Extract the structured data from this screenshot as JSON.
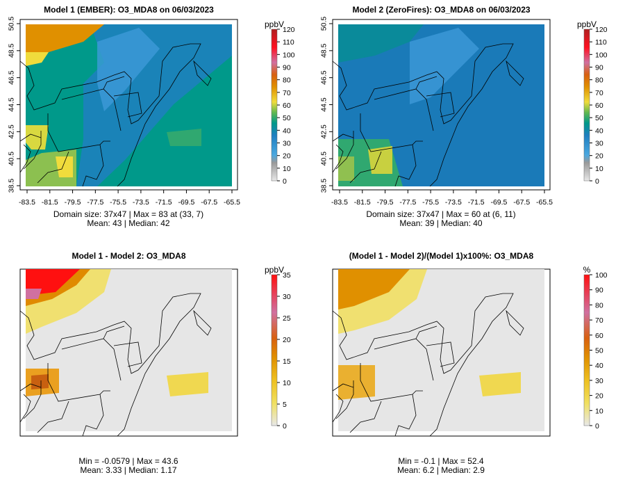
{
  "panels": [
    {
      "title": "Model 1 (EMBER): O3_MDA8 on 06/03/2023",
      "stats_line1": "Domain size: 37x47 | Max = 83 at (33, 7)",
      "stats_line2": "Mean: 43 |  Median: 42",
      "unit": "ppbV",
      "colorbar_ticks": [
        "0",
        "10",
        "20",
        "30",
        "40",
        "50",
        "60",
        "70",
        "80",
        "90",
        "100",
        "110",
        "120"
      ]
    },
    {
      "title": "Model 2 (ZeroFires): O3_MDA8 on 06/03/2023",
      "stats_line1": "Domain size: 37x47 | Max = 60 at (6, 11)",
      "stats_line2": "Mean: 39 |  Median: 40",
      "unit": "ppbV",
      "colorbar_ticks": [
        "0",
        "10",
        "20",
        "30",
        "40",
        "50",
        "60",
        "70",
        "80",
        "90",
        "100",
        "110",
        "120"
      ]
    },
    {
      "title": "Model 1 - Model 2: O3_MDA8",
      "stats_line1": "Min = -0.0579 | Max = 43.6",
      "stats_line2": "Mean: 3.33 |  Median: 1.17",
      "unit": "ppbV",
      "colorbar_ticks": [
        "0",
        "5",
        "10",
        "15",
        "20",
        "25",
        "30",
        "35"
      ]
    },
    {
      "title": "(Model 1 - Model 2)/(Model 1)x100%: O3_MDA8",
      "stats_line1": "Min = -0.1 | Max = 52.4",
      "stats_line2": "Mean: 6.2 |  Median: 2.9",
      "unit": "%",
      "colorbar_ticks": [
        "0",
        "10",
        "20",
        "30",
        "40",
        "50",
        "60",
        "70",
        "80",
        "90",
        "100"
      ]
    }
  ],
  "chart_data": [
    {
      "type": "heatmap",
      "title": "Model 1 (EMBER): O3_MDA8 on 06/03/2023",
      "xlim": [
        -83.5,
        -65.5
      ],
      "ylim": [
        38.5,
        50.5
      ],
      "x_ticks": [
        "-83.5",
        "-81.5",
        "-79.5",
        "-77.5",
        "-75.5",
        "-73.5",
        "-71.5",
        "-69.5",
        "-67.5",
        "-65.5"
      ],
      "y_ticks": [
        "38.5",
        "40.5",
        "42.5",
        "44.5",
        "46.5",
        "48.5",
        "50.5"
      ],
      "zlim": [
        0,
        120
      ],
      "max": 83,
      "mean": 43,
      "median": 42
    },
    {
      "type": "heatmap",
      "title": "Model 2 (ZeroFires): O3_MDA8 on 06/03/2023",
      "xlim": [
        -83.5,
        -65.5
      ],
      "ylim": [
        38.5,
        50.5
      ],
      "x_ticks": [
        "-83.5",
        "-81.5",
        "-79.5",
        "-77.5",
        "-75.5",
        "-73.5",
        "-71.5",
        "-69.5",
        "-67.5",
        "-65.5"
      ],
      "y_ticks": [
        "38.5",
        "40.5",
        "42.5",
        "44.5",
        "46.5",
        "48.5",
        "50.5"
      ],
      "zlim": [
        0,
        120
      ],
      "max": 60,
      "mean": 39,
      "median": 40
    },
    {
      "type": "heatmap",
      "title": "Model 1 - Model 2: O3_MDA8",
      "zlim": [
        0,
        35
      ],
      "min": -0.0579,
      "max": 43.6,
      "mean": 3.33,
      "median": 1.17
    },
    {
      "type": "heatmap",
      "title": "(Model 1 - Model 2)/(Model 1)x100%: O3_MDA8",
      "zlim": [
        0,
        100
      ],
      "min": -0.1,
      "max": 52.4,
      "mean": 6.2,
      "median": 2.9
    }
  ],
  "colors": {
    "teal": "#00998a",
    "blue": "#1f7fc0",
    "lightblue": "#3d9ad8",
    "orange": "#e08a00",
    "yellow": "#f0dc3c",
    "green": "#4cb060",
    "red": "#ff1010",
    "gray": "#e6e6e6"
  }
}
